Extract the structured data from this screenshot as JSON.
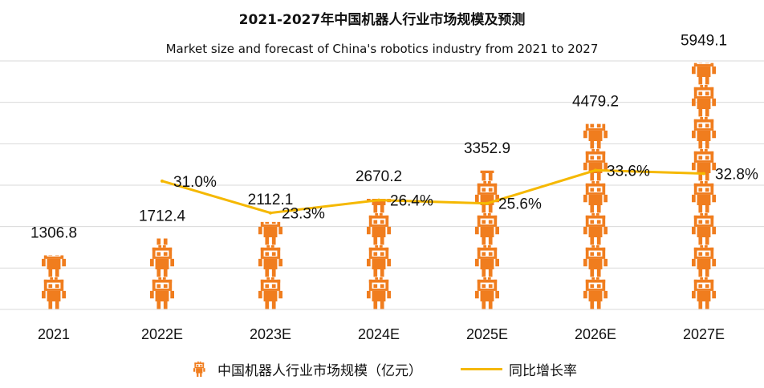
{
  "title": "2021-2027年中国机器人行业市场规模及预测",
  "subtitle": "Market size and forecast of China's robotics industry from 2021 to 2027",
  "colors": {
    "bar": "#f07d1e",
    "line": "#f5b800",
    "grid": "#d9d9d9",
    "text": "#111111"
  },
  "legend": {
    "bar_label": "中国机器人行业市场规模（亿元）",
    "bar_icon": "robot-icon",
    "line_label": "同比增长率"
  },
  "chart_data": {
    "type": "bar",
    "categories": [
      "2021",
      "2022E",
      "2023E",
      "2024E",
      "2025E",
      "2026E",
      "2027E"
    ],
    "series": [
      {
        "name": "中国机器人行业市场规模（亿元）",
        "type": "pictorial-bar",
        "values": [
          1306.8,
          1712.4,
          2112.1,
          2670.2,
          3352.9,
          4479.2,
          5949.1
        ],
        "labels": [
          "1306.8",
          "1712.4",
          "2112.1",
          "2670.2",
          "3352.9",
          "4479.2",
          "5949.1"
        ]
      },
      {
        "name": "同比增长率",
        "type": "line",
        "values": [
          null,
          31.0,
          23.3,
          26.4,
          25.6,
          33.6,
          32.8
        ],
        "labels": [
          "",
          "31.0%",
          "23.3%",
          "26.4%",
          "25.6%",
          "33.6%",
          "32.8%"
        ]
      }
    ],
    "ylim": [
      0,
      6000
    ],
    "y2lim": [
      0,
      60
    ],
    "grid": true,
    "legend_position": "bottom"
  }
}
